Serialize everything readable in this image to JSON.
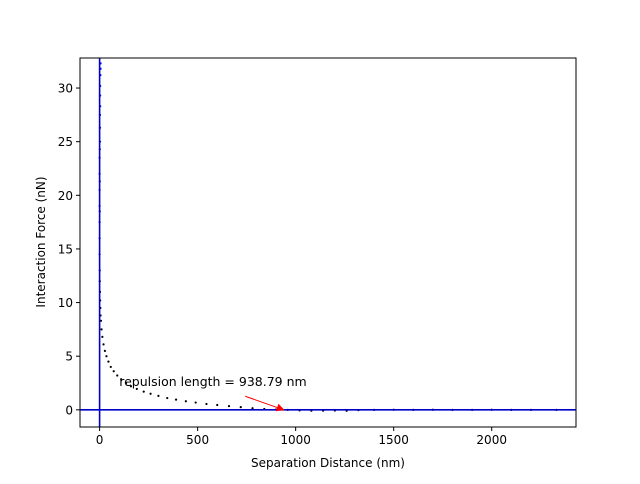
{
  "chart_data": {
    "type": "scatter",
    "xlabel": "Separation Distance (nm)",
    "ylabel": "Interaction Force (nN)",
    "xlim": [
      -100,
      2430
    ],
    "ylim": [
      -1.6,
      32.8
    ],
    "xticks": [
      0,
      500,
      1000,
      1500,
      2000
    ],
    "yticks": [
      0,
      5,
      10,
      15,
      20,
      25,
      30
    ],
    "grid": false,
    "legend": "none",
    "colors": {
      "points": "#000000",
      "contact_points": "#0000ff",
      "reference_lines": "#0000cc",
      "annotation_arrow": "#ff0000"
    },
    "reference_lines": {
      "vertical_x": 0,
      "horizontal_y": 0
    },
    "annotation": {
      "text": "repulsion length = 938.79 nm",
      "text_at": [
        100,
        2.2
      ],
      "arrow_to": [
        938.79,
        0
      ]
    },
    "series": [
      {
        "points": [
          [
            0,
            17.5
          ],
          [
            0,
            19.0
          ],
          [
            0,
            20.5
          ],
          [
            0,
            22.0
          ],
          [
            0,
            23.5
          ],
          [
            2,
            25.0
          ],
          [
            2,
            26.3
          ],
          [
            2,
            27.5
          ],
          [
            3,
            28.3
          ],
          [
            3,
            29.3
          ],
          [
            3,
            30.2
          ],
          [
            4,
            31.2
          ],
          [
            5,
            32.3
          ],
          [
            5,
            31.8
          ],
          [
            1,
            24.3
          ],
          [
            1,
            21.3
          ],
          [
            1,
            18.5
          ],
          [
            0,
            16.0
          ],
          [
            0,
            14.5
          ],
          [
            1,
            13.0
          ],
          [
            1,
            12.0
          ],
          [
            2,
            11.0
          ],
          [
            3,
            10.2
          ],
          [
            4,
            9.5
          ],
          [
            5,
            8.8
          ],
          [
            7,
            8.3
          ],
          [
            10,
            7.5
          ],
          [
            14,
            6.8
          ],
          [
            20,
            6.1
          ],
          [
            27,
            5.5
          ],
          [
            35,
            5.0
          ],
          [
            45,
            4.5
          ],
          [
            57,
            4.0
          ],
          [
            72,
            3.6
          ],
          [
            90,
            3.2
          ],
          [
            110,
            2.85
          ],
          [
            135,
            2.5
          ],
          [
            160,
            2.2
          ],
          [
            190,
            1.95
          ],
          [
            225,
            1.7
          ],
          [
            260,
            1.5
          ],
          [
            300,
            1.3
          ],
          [
            345,
            1.1
          ],
          [
            390,
            0.95
          ],
          [
            440,
            0.8
          ],
          [
            490,
            0.68
          ],
          [
            545,
            0.55
          ],
          [
            600,
            0.45
          ],
          [
            660,
            0.35
          ],
          [
            720,
            0.25
          ],
          [
            780,
            0.15
          ],
          [
            840,
            0.08
          ],
          [
            900,
            0.03
          ],
          [
            960,
            0.0
          ],
          [
            1020,
            -0.05
          ],
          [
            1080,
            -0.08
          ],
          [
            1140,
            -0.07
          ],
          [
            1200,
            -0.06
          ],
          [
            1260,
            -0.09
          ],
          [
            1320,
            -0.03
          ],
          [
            1400,
            0.0
          ],
          [
            1500,
            0.01
          ],
          [
            1600,
            0.0
          ],
          [
            1700,
            0.01
          ],
          [
            1800,
            0.0
          ],
          [
            1900,
            0.0
          ],
          [
            2000,
            0.01
          ],
          [
            2100,
            0.0
          ],
          [
            2200,
            0.0
          ],
          [
            2330,
            0.0
          ]
        ]
      }
    ]
  }
}
